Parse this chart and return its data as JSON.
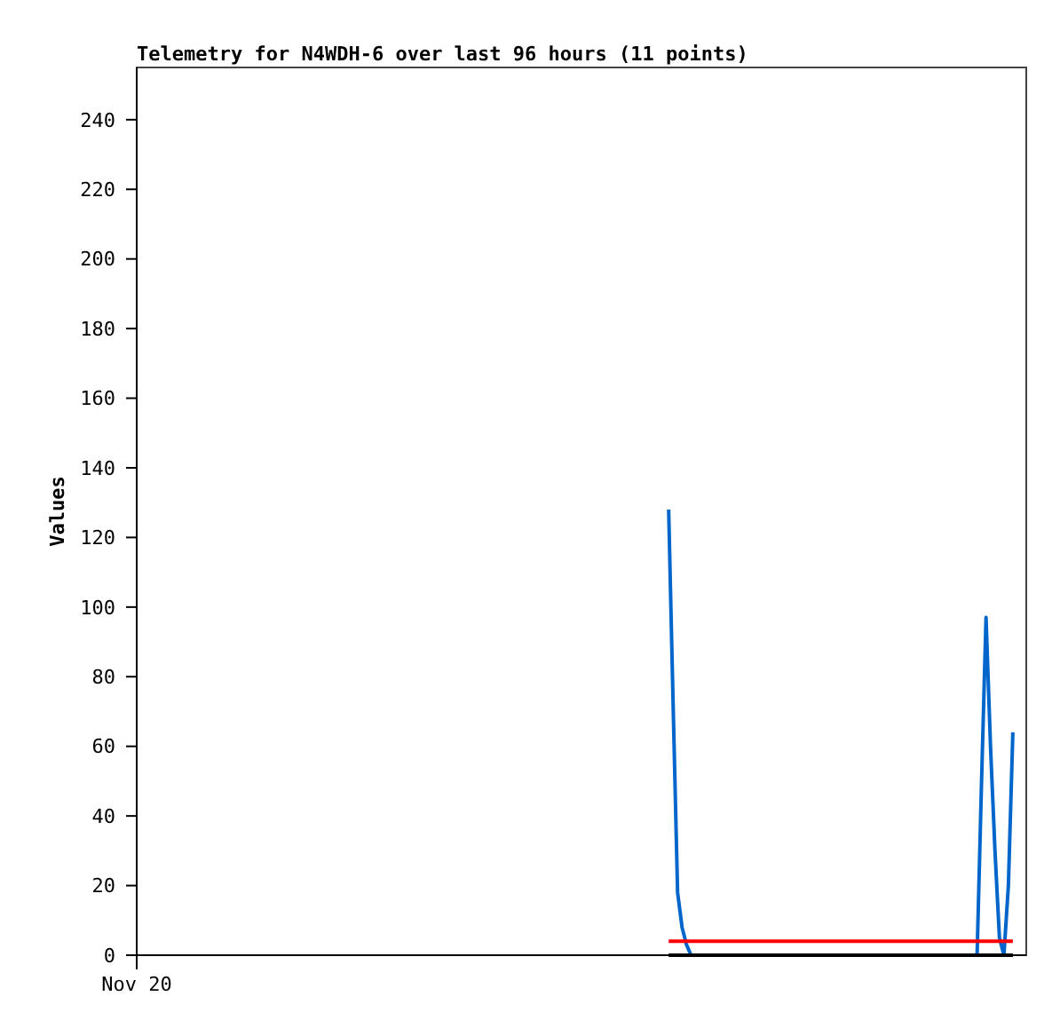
{
  "chart_data": {
    "type": "line",
    "title": "Telemetry for N4WDH-6 over last 96 hours (11 points)",
    "ylabel": "Values",
    "annotations": [
      "Nov 20"
    ],
    "categories": [
      null,
      null,
      null,
      null,
      null,
      null,
      null,
      null,
      null,
      null,
      null,
      null,
      null,
      null,
      null,
      null,
      null,
      null,
      null,
      null,
      null,
      null,
      null,
      null,
      null,
      null,
      null,
      null,
      null,
      null,
      null,
      null,
      null,
      null,
      null,
      null,
      null,
      null,
      null,
      null,
      null,
      null,
      null,
      null,
      null,
      null,
      null,
      null,
      null,
      null,
      null,
      null,
      null,
      null,
      null,
      null,
      null,
      null,
      null,
      null,
      null,
      null,
      null,
      null,
      null,
      null,
      null,
      null,
      null,
      null,
      null,
      null,
      null,
      null,
      null,
      null,
      null,
      null,
      null,
      null,
      null,
      null,
      null,
      null,
      null,
      null,
      null,
      null,
      null,
      null,
      null,
      null,
      null,
      null,
      null,
      null,
      null,
      null,
      null,
      null,
      null,
      null,
      null,
      null,
      null,
      null,
      null,
      null,
      null,
      null,
      null,
      null,
      null,
      null,
      null,
      null,
      null,
      null,
      null,
      null,
      null,
      null,
      null,
      null,
      null,
      null,
      null,
      null,
      null,
      null,
      null,
      null,
      null,
      null,
      null,
      null,
      null,
      null,
      null,
      null,
      null,
      null,
      null,
      null,
      null,
      null,
      null,
      null,
      null,
      null,
      null,
      null,
      null,
      null,
      null,
      null,
      null,
      null,
      null,
      null,
      null,
      null,
      null,
      null,
      null,
      null,
      null,
      null,
      null,
      null,
      null,
      null,
      null,
      null,
      null,
      null,
      null,
      null,
      null,
      null,
      null,
      null,
      null,
      null,
      null,
      null,
      null,
      null,
      null,
      null,
      null,
      null,
      null,
      null,
      null,
      null,
      null,
      null,
      null,
      null
    ],
    "ylim": [
      0,
      255
    ],
    "yticks": [
      0,
      20,
      40,
      60,
      80,
      100,
      120,
      140,
      160,
      180,
      200,
      220,
      240
    ],
    "marker": "none",
    "line_style": "solid",
    "series": [
      {
        "color": "#0066cc",
        "values": [
          null,
          null,
          null,
          null,
          null,
          null,
          null,
          null,
          null,
          null,
          null,
          null,
          null,
          null,
          null,
          null,
          null,
          null,
          null,
          null,
          null,
          null,
          null,
          null,
          null,
          null,
          null,
          null,
          null,
          null,
          null,
          null,
          null,
          null,
          null,
          null,
          null,
          null,
          null,
          null,
          null,
          null,
          null,
          null,
          null,
          null,
          null,
          null,
          null,
          null,
          null,
          null,
          null,
          null,
          null,
          null,
          null,
          null,
          null,
          null,
          null,
          null,
          null,
          null,
          null,
          null,
          null,
          null,
          null,
          null,
          null,
          null,
          null,
          null,
          null,
          null,
          null,
          null,
          null,
          null,
          null,
          null,
          null,
          null,
          null,
          null,
          null,
          null,
          null,
          null,
          null,
          null,
          null,
          null,
          null,
          null,
          null,
          null,
          null,
          null,
          null,
          null,
          null,
          null,
          null,
          null,
          null,
          null,
          null,
          null,
          null,
          null,
          null,
          null,
          null,
          null,
          null,
          null,
          null,
          128,
          72,
          18,
          8,
          3,
          0,
          null,
          null,
          null,
          null,
          null,
          null,
          null,
          null,
          null,
          null,
          null,
          null,
          null,
          null,
          null,
          null,
          null,
          null,
          null,
          null,
          null,
          null,
          null,
          null,
          null,
          null,
          null,
          null,
          null,
          null,
          null,
          null,
          null,
          null,
          null,
          null,
          null,
          null,
          null,
          null,
          null,
          null,
          null,
          null,
          null,
          null,
          null,
          null,
          null,
          null,
          null,
          null,
          null,
          null,
          null,
          null,
          null,
          null,
          null,
          null,
          null,
          null,
          null,
          0,
          50,
          97,
          60,
          30,
          5,
          0,
          20,
          64,
          null,
          null,
          null
        ]
      },
      {
        "color": "#ff0000",
        "values": [
          null,
          null,
          null,
          null,
          null,
          null,
          null,
          null,
          null,
          null,
          null,
          null,
          null,
          null,
          null,
          null,
          null,
          null,
          null,
          null,
          null,
          null,
          null,
          null,
          null,
          null,
          null,
          null,
          null,
          null,
          null,
          null,
          null,
          null,
          null,
          null,
          null,
          null,
          null,
          null,
          null,
          null,
          null,
          null,
          null,
          null,
          null,
          null,
          null,
          null,
          null,
          null,
          null,
          null,
          null,
          null,
          null,
          null,
          null,
          null,
          null,
          null,
          null,
          null,
          null,
          null,
          null,
          null,
          null,
          null,
          null,
          null,
          null,
          null,
          null,
          null,
          null,
          null,
          null,
          null,
          null,
          null,
          null,
          null,
          null,
          null,
          null,
          null,
          null,
          null,
          null,
          null,
          null,
          null,
          null,
          null,
          null,
          null,
          null,
          null,
          null,
          null,
          null,
          null,
          null,
          null,
          null,
          null,
          null,
          null,
          null,
          null,
          null,
          null,
          null,
          null,
          null,
          null,
          null,
          4,
          4,
          4,
          4,
          4,
          4,
          4,
          4,
          4,
          4,
          4,
          4,
          4,
          4,
          4,
          4,
          4,
          4,
          4,
          4,
          4,
          4,
          4,
          4,
          4,
          4,
          4,
          4,
          4,
          4,
          4,
          4,
          4,
          4,
          4,
          4,
          4,
          4,
          4,
          4,
          4,
          4,
          4,
          4,
          4,
          4,
          4,
          4,
          4,
          4,
          4,
          4,
          4,
          4,
          4,
          4,
          4,
          4,
          4,
          4,
          4,
          4,
          4,
          4,
          4,
          4,
          4,
          4,
          4,
          4,
          4,
          4,
          4,
          4,
          4,
          4,
          4,
          4,
          null,
          null,
          null
        ]
      },
      {
        "color": "#000000",
        "values": [
          null,
          null,
          null,
          null,
          null,
          null,
          null,
          null,
          null,
          null,
          null,
          null,
          null,
          null,
          null,
          null,
          null,
          null,
          null,
          null,
          null,
          null,
          null,
          null,
          null,
          null,
          null,
          null,
          null,
          null,
          null,
          null,
          null,
          null,
          null,
          null,
          null,
          null,
          null,
          null,
          null,
          null,
          null,
          null,
          null,
          null,
          null,
          null,
          null,
          null,
          null,
          null,
          null,
          null,
          null,
          null,
          null,
          null,
          null,
          null,
          null,
          null,
          null,
          null,
          null,
          null,
          null,
          null,
          null,
          null,
          null,
          null,
          null,
          null,
          null,
          null,
          null,
          null,
          null,
          null,
          null,
          null,
          null,
          null,
          null,
          null,
          null,
          null,
          null,
          null,
          null,
          null,
          null,
          null,
          null,
          null,
          null,
          null,
          null,
          null,
          null,
          null,
          null,
          null,
          null,
          null,
          null,
          null,
          null,
          null,
          null,
          null,
          null,
          null,
          null,
          null,
          null,
          null,
          null,
          0,
          0,
          0,
          0,
          0,
          0,
          0,
          0,
          0,
          0,
          0,
          0,
          0,
          0,
          0,
          0,
          0,
          0,
          0,
          0,
          0,
          0,
          0,
          0,
          0,
          0,
          0,
          0,
          0,
          0,
          0,
          0,
          0,
          0,
          0,
          0,
          0,
          0,
          0,
          0,
          0,
          0,
          0,
          0,
          0,
          0,
          0,
          0,
          0,
          0,
          0,
          0,
          0,
          0,
          0,
          0,
          0,
          0,
          0,
          0,
          0,
          0,
          0,
          0,
          0,
          0,
          0,
          0,
          0,
          0,
          0,
          0,
          0,
          0,
          0,
          0,
          0,
          0,
          null,
          null,
          null
        ]
      }
    ]
  }
}
